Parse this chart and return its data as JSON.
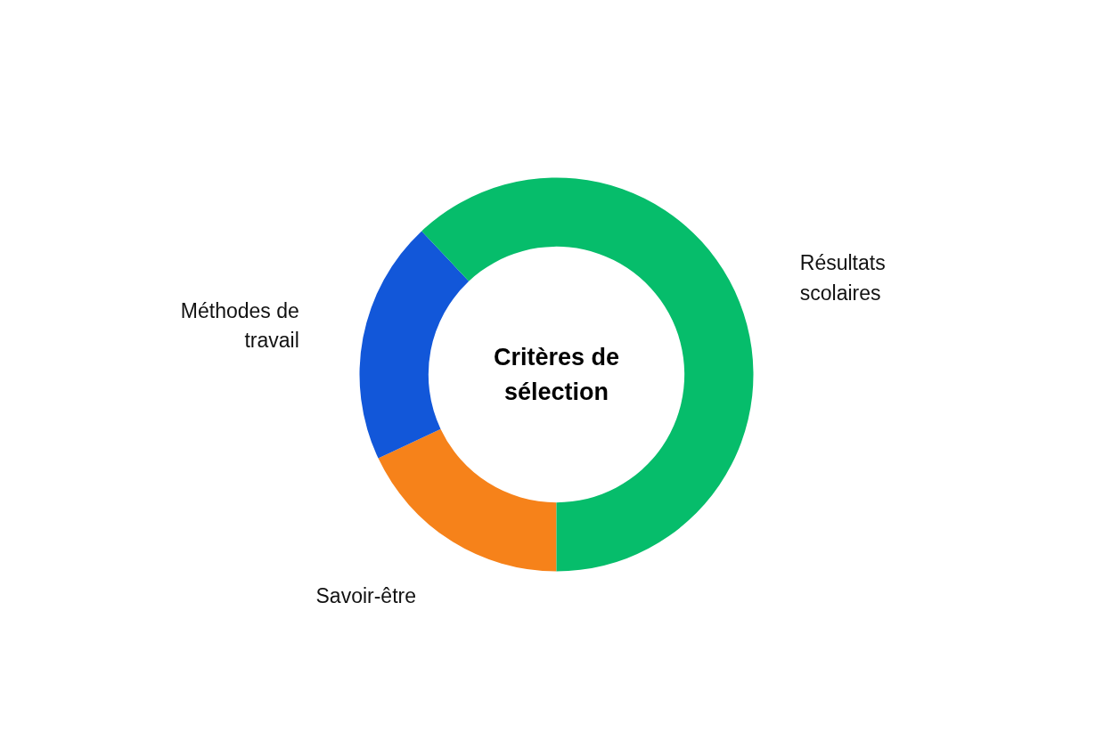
{
  "chart_data": {
    "type": "donut",
    "title": "Critères de sélection",
    "categories": [
      "Savoir-être",
      "Méthodes de travail",
      "Résultats scolaires"
    ],
    "values": [
      18,
      20,
      62
    ],
    "colors": [
      "#f6821a",
      "#1257d9",
      "#06bd6b"
    ]
  }
}
